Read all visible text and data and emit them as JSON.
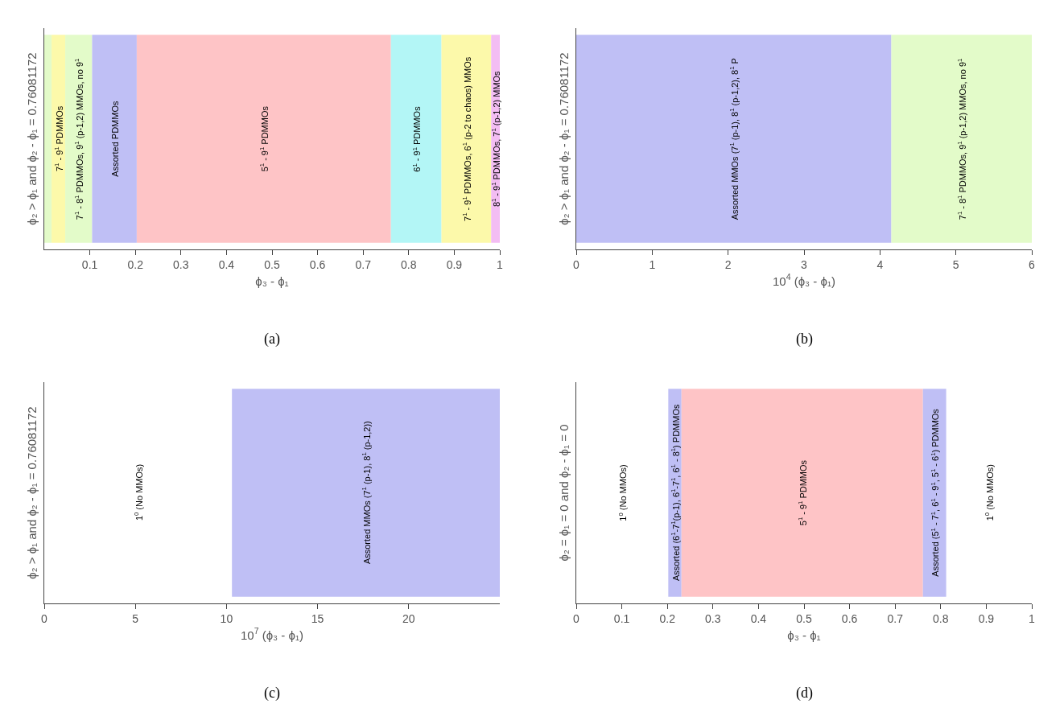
{
  "chart_data": [
    {
      "type": "bar",
      "orientation": "horizontal",
      "stacked": true,
      "categories": [
        null
      ],
      "xlabel": "ϕ₃ - ϕ₁",
      "ylabel": "ϕ₂ > ϕ₁ and ϕ₂ - ϕ₁ = 0.76081172",
      "xlim": [
        0,
        1
      ],
      "xticks": [
        0.1,
        0.2,
        0.3,
        0.4,
        0.5,
        0.6,
        0.7,
        0.8,
        0.9,
        1
      ],
      "tick_labels": "x",
      "annotations": [
        "(a)"
      ],
      "series": [
        {
          "color": "#e3fbc9",
          "values": [
            0.016
          ]
        },
        {
          "name": "7$^{1}$ - 9$^{1}$ PDMMOs",
          "color": "#fcf9aa",
          "values": [
            0.03
          ]
        },
        {
          "name": "7$^{1}$ - 8$^{1}$ PDMMOs, 9$^{1}$ (p-1,2) MMOs, no 9$^{1}$",
          "color": "#e3fbc9",
          "values": [
            0.059
          ]
        },
        {
          "name": "Assorted PDMMOs",
          "color": "#bfbff5",
          "values": [
            0.098
          ]
        },
        {
          "name": "5$^{1}$ - 9$^{1}$ PDMMOs",
          "color": "#fec4c6",
          "values": [
            0.558
          ]
        },
        {
          "name": "6$^{1}$ - 9$^{1}$ PDMMOs",
          "color": "#b3f6f6",
          "values": [
            0.111
          ]
        },
        {
          "name": "7$^{1}$ - 9$^{1}$ PDMMOs, 6$^{1}$ (p-2 to chaos) MMOs",
          "color": "#fcf9aa",
          "values": [
            0.109
          ]
        },
        {
          "name": "8$^{1}$ - 9$^{1}$ PDMMOs, 7$^{1}$ (p-1,2) MMOs",
          "color": "#f3bdf3",
          "values": [
            0.019
          ]
        }
      ]
    },
    {
      "type": "bar",
      "orientation": "horizontal",
      "stacked": true,
      "categories": [
        null
      ],
      "xlabel": "10$^{4}$ (ϕ₃ - ϕ₁)",
      "ylabel": "ϕ₂ > ϕ₁ and ϕ₂ - ϕ₁ = 0.76081172",
      "xlim": [
        0,
        6
      ],
      "xticks": [
        0,
        1,
        2,
        3,
        4,
        5,
        6
      ],
      "tick_labels": "x",
      "annotations": [
        "(b)"
      ],
      "series": [
        {
          "name": "Assorted MMOs (7$^{1}$ (p-1), 8$^{1}$ (p-1,2), 8$^{1}$ P",
          "color": "#bfbff5",
          "values": [
            4.15
          ]
        },
        {
          "name": "7$^{1}$ - 8$^{1}$ PDMMOs, 9$^{1}$ (p-1,2) MMOs, no 9$^{1}$",
          "color": "#e3fbc9",
          "values": [
            1.85
          ]
        }
      ]
    },
    {
      "type": "bar",
      "orientation": "horizontal",
      "categories": [
        null
      ],
      "xlabel": "10$^{7}$ (ϕ₃ - ϕ₁)",
      "ylabel": "ϕ₂ > ϕ₁ and ϕ₂ - ϕ₁ = 0.76081172",
      "xlim": [
        0,
        25
      ],
      "xticks": [
        0,
        5,
        10,
        15,
        20
      ],
      "tick_labels": "x",
      "annotations": [
        "(c)",
        "1$^{0}$ (No MMOs)"
      ],
      "series": [
        {
          "name": "Assorted MMOs (7$^{1}$ (p-1), 8$^{1}$ (p-1,2))",
          "color": "#bfbff5",
          "base": [
            10.3
          ],
          "values": [
            14.7
          ]
        }
      ]
    },
    {
      "type": "bar",
      "orientation": "horizontal",
      "categories": [
        null
      ],
      "xlabel": "ϕ₃ - ϕ₁",
      "ylabel": "ϕ₂ = ϕ₁ = 0 and ϕ₂ - ϕ₁ = 0",
      "xlim": [
        0,
        1
      ],
      "xticks": [
        0,
        0.1,
        0.2,
        0.3,
        0.4,
        0.5,
        0.6,
        0.7,
        0.8,
        0.9,
        1
      ],
      "tick_labels": "x",
      "annotations": [
        "(d)",
        "1$^{0}$ (No MMOs)",
        "1$^{0}$ (No MMOs)"
      ],
      "series": [
        {
          "name": "Assorted (6$^{1}$-7$^{1}$(p-1), 6$^{1}$-7$^{1}$, 6$^{1}$ - 8$^{1}$) PDMMOs",
          "color": "#bfbff5",
          "base": [
            0.202
          ],
          "values": [
            0.029
          ]
        },
        {
          "name": "5$^{1}$ - 9$^{1}$ PDMMOs",
          "color": "#fec4c6",
          "base": [
            0.231
          ],
          "values": [
            0.53
          ]
        },
        {
          "name": "Assorted (5$^{1}$ - 7$^{1}$, 6$^{1}$ - 9$^{1}$, 5$^{1}$ - 6$^{1}$) PDMMOs",
          "color": "#bfbff5",
          "base": [
            0.761
          ],
          "values": [
            0.051
          ]
        }
      ]
    }
  ]
}
